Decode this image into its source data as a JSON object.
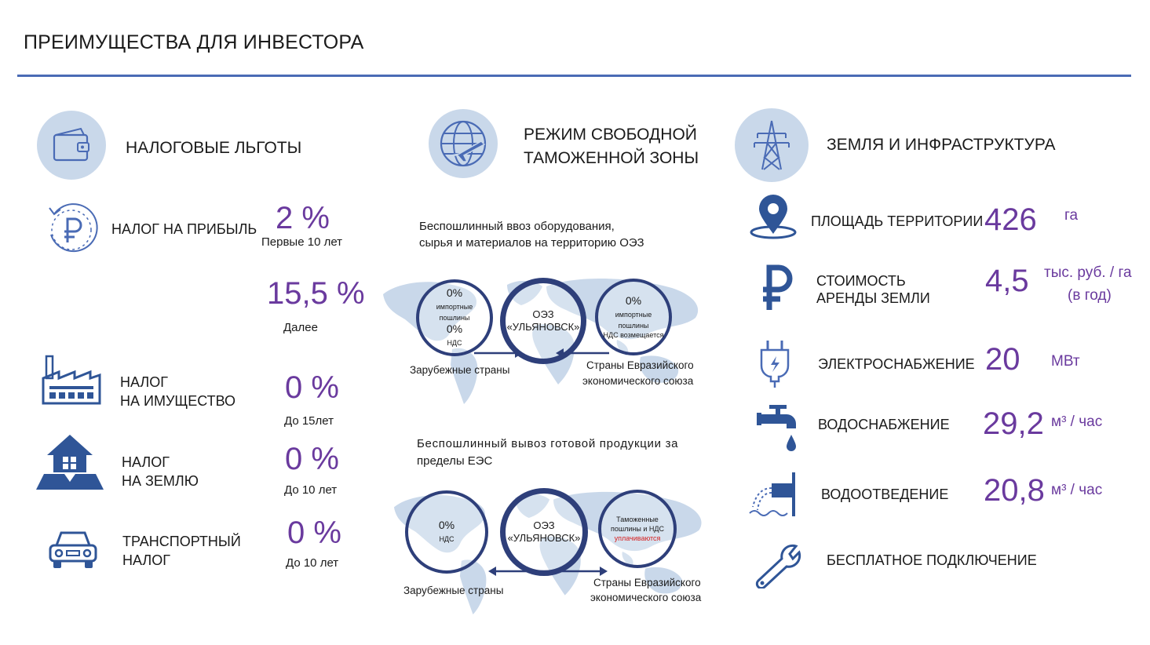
{
  "page": {
    "title": "ПРЕИМУЩЕСТВА ДЛЯ ИНВЕСТОРА",
    "accent_color": "#4a6bb5",
    "value_color": "#6a3a9e"
  },
  "tax": {
    "title": "НАЛОГОВЫЕ ЛЬГОТЫ",
    "icon": "wallet-icon",
    "profit": {
      "label": "НАЛОГ НА ПРИБЫЛЬ",
      "value1": "2 %",
      "note1": "Первые 10 лет",
      "value2": "15,5 %",
      "note2": "Далее",
      "icon": "ruble-cycle-icon"
    },
    "property": {
      "label_line1": "НАЛОГ",
      "label_line2": "НА ИМУЩЕСТВО",
      "value": "0 %",
      "note": "До 15лет",
      "icon": "factory-icon"
    },
    "land": {
      "label_line1": "НАЛОГ",
      "label_line2": "НА ЗЕМЛЮ",
      "value": "0 %",
      "note": "До 10 лет",
      "icon": "house-land-icon"
    },
    "transport": {
      "label_line1": "ТРАНСПОРТНЫЙ",
      "label_line2": "НАЛОГ",
      "value": "0 %",
      "note": "До 10 лет",
      "icon": "car-icon"
    }
  },
  "customs": {
    "title_line1": "РЕЖИМ СВОБОДНОЙ",
    "title_line2": "ТАМОЖЕННОЙ ЗОНЫ",
    "icon": "globe-plane-icon",
    "import": {
      "text_line1": "Беспошлинный ввоз оборудования,",
      "text_line2": "сырья и материалов на территорию ОЭЗ",
      "left_circle": {
        "l1a": "0%",
        "l1b": " импортные",
        "l2": "пошлины",
        "l3a": "0%",
        "l3b": " НДС"
      },
      "center_line1": "ОЭЗ",
      "center_line2": "«УЛЬЯНОВСК»",
      "right_circle": {
        "l1a": "0%",
        "l1b": " импортные",
        "l2": "пошлины",
        "l3": "НДС возмещается"
      },
      "left_caption": "Зарубежные страны",
      "right_caption_line1": "Страны Евразийского",
      "right_caption_line2": "экономического союза"
    },
    "export": {
      "text_line1": "Беспошлинный вывоз готовой продукции за",
      "text_line2": "пределы ЕЭС",
      "left_circle": {
        "l1a": "0%",
        "l1b": " НДС"
      },
      "center_line1": "ОЭЗ",
      "center_line2": "«УЛЬЯНОВСК»",
      "right_circle": {
        "l1": "Таможенные",
        "l2": "пошлины и НДС",
        "l3": "уплачиваются"
      },
      "left_caption": "Зарубежные страны",
      "right_caption_line1": "Страны Евразийского",
      "right_caption_line2": "экономического союза"
    }
  },
  "land": {
    "title": "ЗЕМЛЯ И ИНФРАСТРУКТУРА",
    "icon": "power-tower-icon",
    "area": {
      "label": "ПЛОЩАДЬ ТЕРРИТОРИИ",
      "value": "426",
      "unit": "га",
      "icon": "map-pin-icon"
    },
    "rent": {
      "label_line1": "СТОИМОСТЬ",
      "label_line2": "АРЕНДЫ ЗЕМЛИ",
      "value": "4,5",
      "unit_line1": "тыс. руб. / га",
      "unit_line2": "(в год)",
      "icon": "ruble-icon"
    },
    "power": {
      "label": "ЭЛЕКТРОСНАБЖЕНИЕ",
      "value": "20",
      "unit": "МВт",
      "icon": "plug-icon"
    },
    "water": {
      "label": "ВОДОСНАБЖЕНИЕ",
      "value": "29,2",
      "unit": "м³ / час",
      "icon": "faucet-icon"
    },
    "sewer": {
      "label": "ВОДООТВЕДЕНИЕ",
      "value": "20,8",
      "unit": "м³ / час",
      "icon": "drain-pipe-icon"
    },
    "connect": {
      "label": "БЕСПЛАТНОЕ ПОДКЛЮЧЕНИЕ",
      "icon": "wrench-icon"
    }
  }
}
